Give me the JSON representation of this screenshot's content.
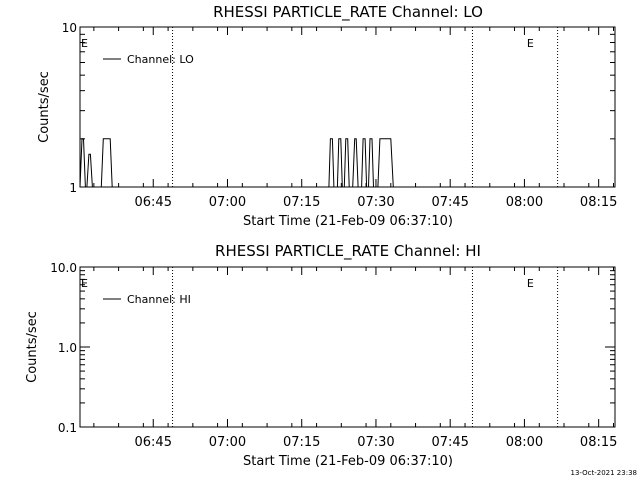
{
  "footer": {
    "timestamp": "13-Oct-2021 23:38"
  },
  "chart_data": [
    {
      "type": "line",
      "title": "RHESSI PARTICLE_RATE Channel: LO",
      "xlabel": "Start Time (21-Feb-09 06:37:10)",
      "ylabel": "Counts/sec",
      "yscale": "log",
      "x_ticks": [
        "06:45",
        "07:00",
        "07:15",
        "07:30",
        "07:45",
        "08:00",
        "08:15"
      ],
      "x_tick_minutes": [
        412,
        427,
        442,
        457,
        472,
        487,
        502
      ],
      "xlim_minutes": [
        397.2,
        505.3
      ],
      "y_ticks": [
        "1",
        "10"
      ],
      "y_tick_values": [
        1,
        10
      ],
      "ylim": [
        1,
        10
      ],
      "legend": {
        "label": "Channel: LO",
        "position": "top-left"
      },
      "event_markers": [
        {
          "x_minutes": 397.2,
          "label": "E"
        },
        {
          "x_minutes": 487.3,
          "label": "E"
        }
      ],
      "dotted_lines_minutes": [
        415.9,
        476.5,
        493.7
      ],
      "series": [
        {
          "name": "Channel: LO",
          "x_minutes": [
            397.2,
            397.6,
            397.9,
            398.3,
            398.6,
            399.0,
            399.3,
            399.7,
            400.0,
            400.6,
            400.9,
            401.5,
            401.9,
            403.3,
            403.7,
            405.0,
            405.4,
            447.5,
            447.8,
            448.2,
            448.5,
            448.9,
            449.2,
            449.5,
            449.9,
            450.2,
            450.6,
            450.9,
            451.3,
            451.6,
            452.0,
            452.3,
            452.7,
            453.0,
            453.4,
            453.7,
            454.1,
            454.4,
            454.8,
            455.1,
            455.5,
            455.8,
            456.2,
            456.5,
            456.9,
            457.4,
            457.8,
            460.0,
            460.5
          ],
          "values": [
            1,
            2,
            2,
            1,
            1,
            1.6,
            1.6,
            1,
            1,
            1,
            1,
            1,
            2,
            2,
            1,
            1,
            1,
            1,
            2,
            2,
            1,
            1,
            1,
            2,
            2,
            1,
            1,
            2,
            2,
            1,
            1,
            1,
            2,
            2,
            1,
            1,
            1,
            2,
            2,
            1,
            1,
            2,
            2,
            1,
            1,
            1,
            2,
            2,
            1
          ]
        }
      ]
    },
    {
      "type": "line",
      "title": "RHESSI PARTICLE_RATE Channel: HI",
      "xlabel": "Start Time (21-Feb-09 06:37:10)",
      "ylabel": "Counts/sec",
      "yscale": "log",
      "x_ticks": [
        "06:45",
        "07:00",
        "07:15",
        "07:30",
        "07:45",
        "08:00",
        "08:15"
      ],
      "x_tick_minutes": [
        412,
        427,
        442,
        457,
        472,
        487,
        502
      ],
      "xlim_minutes": [
        397.2,
        505.3
      ],
      "y_ticks": [
        "0.1",
        "1.0",
        "10.0"
      ],
      "y_tick_values": [
        0.1,
        1,
        10
      ],
      "ylim": [
        0.1,
        10
      ],
      "legend": {
        "label": "Channel: HI",
        "position": "top-left"
      },
      "event_markers": [
        {
          "x_minutes": 397.2,
          "label": "E"
        },
        {
          "x_minutes": 487.3,
          "label": "E"
        }
      ],
      "dotted_lines_minutes": [
        415.9,
        476.5,
        493.7
      ],
      "series": [
        {
          "name": "Channel: HI",
          "x_minutes": [],
          "values": []
        }
      ]
    }
  ]
}
